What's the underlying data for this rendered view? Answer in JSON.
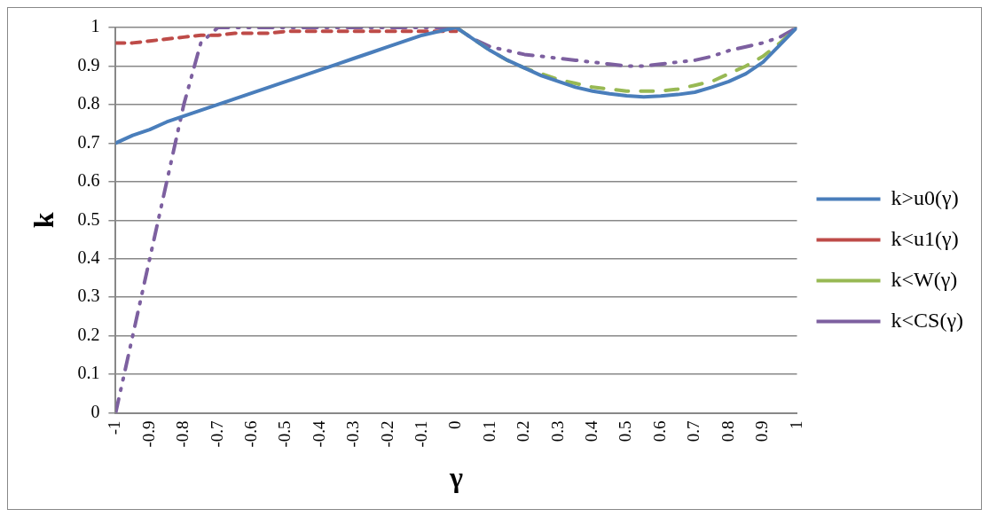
{
  "chart_data": {
    "type": "line",
    "xlabel": "γ",
    "ylabel": "k",
    "x": [
      -1,
      -0.95,
      -0.9,
      -0.85,
      -0.8,
      -0.75,
      -0.7,
      -0.65,
      -0.6,
      -0.55,
      -0.5,
      -0.45,
      -0.4,
      -0.35,
      -0.3,
      -0.25,
      -0.2,
      -0.15,
      -0.1,
      -0.05,
      0,
      0.05,
      0.1,
      0.15,
      0.2,
      0.25,
      0.3,
      0.35,
      0.4,
      0.45,
      0.5,
      0.55,
      0.6,
      0.65,
      0.7,
      0.75,
      0.8,
      0.85,
      0.9,
      0.95,
      1
    ],
    "series": [
      {
        "name": "k>u0(γ)",
        "color": "#4a7ebb",
        "line_style": "solid",
        "values": [
          0.7,
          0.72,
          0.735,
          0.755,
          0.77,
          0.785,
          0.8,
          0.815,
          0.83,
          0.845,
          0.86,
          0.875,
          0.89,
          0.905,
          0.92,
          0.935,
          0.95,
          0.965,
          0.98,
          0.99,
          1.0,
          0.97,
          0.94,
          0.915,
          0.895,
          0.875,
          0.86,
          0.845,
          0.835,
          0.828,
          0.823,
          0.82,
          0.822,
          0.826,
          0.832,
          0.845,
          0.86,
          0.88,
          0.91,
          0.955,
          1.0
        ]
      },
      {
        "name": "k<u1(γ)",
        "color": "#be4b48",
        "line_style": "dashed",
        "values": [
          0.96,
          0.96,
          0.965,
          0.97,
          0.975,
          0.98,
          0.98,
          0.985,
          0.985,
          0.985,
          0.99,
          0.99,
          0.99,
          0.99,
          0.99,
          0.99,
          0.99,
          0.99,
          0.99,
          0.99,
          0.99,
          null,
          null,
          null,
          null,
          null,
          null,
          null,
          null,
          null,
          null,
          null,
          null,
          null,
          null,
          null,
          null,
          null,
          null,
          null,
          null
        ]
      },
      {
        "name": "k<W(γ)",
        "color": "#98b954",
        "line_style": "dashed",
        "values": [
          null,
          null,
          null,
          null,
          null,
          null,
          null,
          null,
          null,
          null,
          null,
          null,
          null,
          null,
          null,
          null,
          null,
          null,
          null,
          null,
          1.0,
          0.97,
          0.94,
          0.915,
          0.895,
          0.88,
          0.865,
          0.855,
          0.845,
          0.84,
          0.835,
          0.835,
          0.835,
          0.84,
          0.85,
          0.86,
          0.88,
          0.9,
          0.925,
          0.96,
          1.0
        ]
      },
      {
        "name": "k<CS(γ)",
        "color": "#7d60a0",
        "line_style": "dashed",
        "values": [
          0,
          0.2,
          0.4,
          0.6,
          0.8,
          0.96,
          1,
          1,
          1,
          1,
          1,
          1,
          1,
          1,
          1,
          1,
          1,
          1,
          1,
          1,
          1,
          0.97,
          0.95,
          0.94,
          0.93,
          0.925,
          0.92,
          0.915,
          0.91,
          0.905,
          0.9,
          0.9,
          0.905,
          0.91,
          0.915,
          0.925,
          0.94,
          0.95,
          0.96,
          0.975,
          1.0
        ]
      }
    ],
    "xlim": [
      -1,
      1
    ],
    "xticks": [
      -1,
      -0.9,
      -0.8,
      -0.7,
      -0.6,
      -0.5,
      -0.4,
      -0.3,
      -0.2,
      -0.1,
      0,
      0.1,
      0.2,
      0.3,
      0.4,
      0.5,
      0.6,
      0.7,
      0.8,
      0.9,
      1
    ],
    "ylim": [
      0,
      1
    ],
    "yticks": [
      0,
      0.1,
      0.2,
      0.3,
      0.4,
      0.5,
      0.6,
      0.7,
      0.8,
      0.9,
      1
    ],
    "grid": "y",
    "legend": "right",
    "marker": "none"
  }
}
